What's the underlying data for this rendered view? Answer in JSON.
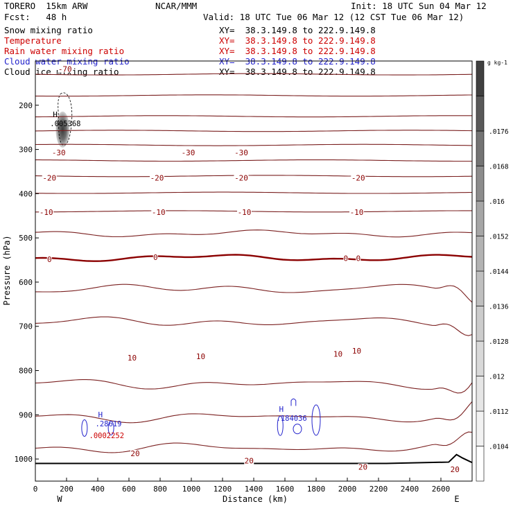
{
  "header": {
    "model": "TORERO  15km ARW",
    "center": "NCAR/MMM",
    "init": "Init: 18 UTC Sun 04 Mar 12",
    "fcst": "Fcst:   48 h",
    "valid": "Valid: 18 UTC Tue 06 Mar 12 (12 CST Tue 06 Mar 12)"
  },
  "fields": [
    {
      "name": "Snow mixing ratio",
      "xy": "XY=  38.3.149.8 to 222.9.149.8",
      "color": "#000000"
    },
    {
      "name": "Temperature",
      "xy": "XY=  38.3.149.8 to 222.9.149.8",
      "color": "#cc0000"
    },
    {
      "name": "Rain water mixing ratio",
      "xy": "XY=  38.3.149.8 to 222.9.149.8",
      "color": "#cc0000"
    },
    {
      "name": "Cloud water mixing ratio",
      "xy": "XY=  38.3.149.8 to 222.9.149.8",
      "color": "#2222cc"
    },
    {
      "name": "Cloud ice mixing ratio",
      "xy": "XY=  38.3.149.8 to 222.9.149.8",
      "color": "#000000"
    }
  ],
  "colors": {
    "temperature": "#7a1f1f",
    "zero_line": "#8b0000",
    "rain": "#cc0000",
    "cloud_water": "#2222cc",
    "ice": "#000000",
    "axis": "#000000"
  },
  "chart_data": {
    "type": "contour",
    "xlabel": "Distance (km)",
    "ylabel": "Pressure (hPa)",
    "xlim": [
      0,
      2800
    ],
    "ylim": [
      1050,
      100
    ],
    "x_ticks": [
      0,
      200,
      400,
      600,
      800,
      1000,
      1200,
      1400,
      1600,
      1800,
      2000,
      2200,
      2400,
      2600
    ],
    "y_ticks": [
      200,
      300,
      400,
      500,
      600,
      700,
      800,
      900,
      1000
    ],
    "x_end_labels": {
      "left": "W",
      "right": "E"
    },
    "colorbar": {
      "units": "g kg-1",
      "ticks": [
        ".0104",
        ".0112",
        ".012",
        ".0128",
        ".0136",
        ".0144",
        ".0152",
        ".016",
        ".0168",
        ".0176"
      ],
      "grays": [
        "#ffffff",
        "#f2f2f2",
        "#e6e6e6",
        "#d9d9d9",
        "#cccccc",
        "#bfbfbf",
        "#b3b3b3",
        "#a6a6a6",
        "#8c8c8c",
        "#737373",
        "#595959",
        "#404040"
      ]
    },
    "temperature_contours": [
      {
        "level": -50,
        "pressure": 130
      },
      {
        "level": -45,
        "pressure": 178
      },
      {
        "level": -40,
        "pressure": 225
      },
      {
        "level": -35,
        "pressure": 258
      },
      {
        "level": -30,
        "pressure": 290
      },
      {
        "level": -25,
        "pressure": 325
      },
      {
        "level": -20,
        "pressure": 360
      },
      {
        "level": -15,
        "pressure": 398
      },
      {
        "level": -10,
        "pressure": 440
      },
      {
        "level": -5,
        "pressure": 490
      },
      {
        "level": 0,
        "pressure": 545
      },
      {
        "level": 5,
        "pressure": 615
      },
      {
        "level": 10,
        "pressure": 690
      },
      {
        "level": 15,
        "pressure": 830
      },
      {
        "level": 20,
        "pressure": 905
      },
      {
        "level": 25,
        "pressure": 975
      }
    ],
    "temperature_labels": [
      {
        "text": "-70",
        "x": 190,
        "p": 118
      },
      {
        "text": "-30",
        "x": 150,
        "p": 307
      },
      {
        "text": "-30",
        "x": 980,
        "p": 307
      },
      {
        "text": "-30",
        "x": 1320,
        "p": 307
      },
      {
        "text": "-20",
        "x": 90,
        "p": 364
      },
      {
        "text": "-20",
        "x": 780,
        "p": 364
      },
      {
        "text": "-20",
        "x": 1320,
        "p": 364
      },
      {
        "text": "-20",
        "x": 2070,
        "p": 364
      },
      {
        "text": "-10",
        "x": 70,
        "p": 442
      },
      {
        "text": "-10",
        "x": 790,
        "p": 442
      },
      {
        "text": "-10",
        "x": 1340,
        "p": 442
      },
      {
        "text": "-10",
        "x": 2060,
        "p": 442
      },
      {
        "text": "0",
        "x": 90,
        "p": 548
      },
      {
        "text": "0",
        "x": 770,
        "p": 544
      },
      {
        "text": "0",
        "x": 1990,
        "p": 546
      },
      {
        "text": "0",
        "x": 2070,
        "p": 546
      },
      {
        "text": "10",
        "x": 620,
        "p": 771
      },
      {
        "text": "10",
        "x": 1060,
        "p": 768
      },
      {
        "text": "10",
        "x": 1940,
        "p": 762
      },
      {
        "text": "10",
        "x": 2060,
        "p": 755
      },
      {
        "text": "20",
        "x": 640,
        "p": 987
      },
      {
        "text": "20",
        "x": 1370,
        "p": 1004
      },
      {
        "text": "20",
        "x": 2100,
        "p": 1018
      },
      {
        "text": "20",
        "x": 2690,
        "p": 1023
      }
    ],
    "snow_max": {
      "label": "H",
      "value": ".005368",
      "x": 130,
      "p": 235
    },
    "rain_max": {
      "label": "H",
      "value": ".0002252",
      "x": 380,
      "p": 934
    },
    "cloud_water_max_1": {
      "label": "H",
      "value": ".28619",
      "x": 420,
      "p": 914
    },
    "cloud_water_max_2": {
      "label": "H",
      "value": ".184036",
      "x": 1580,
      "p": 901
    }
  }
}
